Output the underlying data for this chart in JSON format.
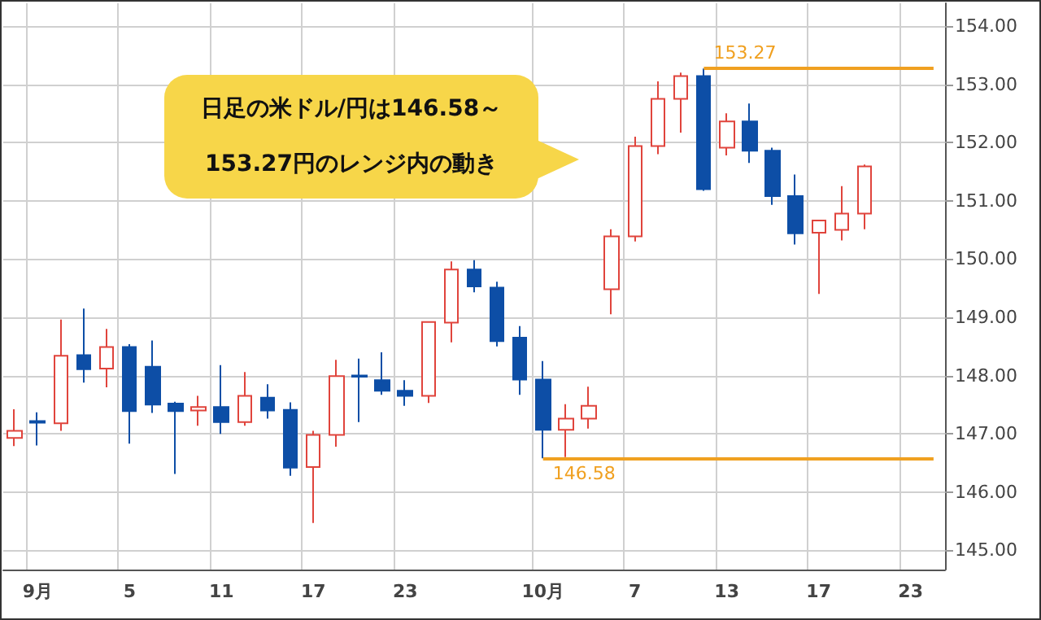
{
  "chart_data": {
    "type": "candlestick",
    "categories": [
      null,
      "9月",
      null,
      null,
      null,
      "5",
      null,
      null,
      null,
      "11",
      null,
      null,
      null,
      "17",
      null,
      null,
      null,
      "23",
      null,
      null,
      null,
      null,
      null,
      "10月",
      null,
      null,
      null,
      "7",
      null,
      null,
      null,
      "13",
      null,
      null,
      null,
      "17",
      null,
      null,
      null,
      "23",
      null
    ],
    "ohlc": [
      [
        146.93,
        147.42,
        146.79,
        147.05
      ],
      [
        147.22,
        147.37,
        146.8,
        147.19
      ],
      [
        147.18,
        148.96,
        147.05,
        148.34
      ],
      [
        148.35,
        149.15,
        147.88,
        148.11
      ],
      [
        148.12,
        148.8,
        147.8,
        148.49
      ],
      [
        148.49,
        148.54,
        146.83,
        147.39
      ],
      [
        148.15,
        148.6,
        147.36,
        147.5
      ],
      [
        147.52,
        147.55,
        146.31,
        147.39
      ],
      [
        147.4,
        147.65,
        147.14,
        147.46
      ],
      [
        147.46,
        148.18,
        147.0,
        147.2
      ],
      [
        147.2,
        148.06,
        147.14,
        147.65
      ],
      [
        147.62,
        147.85,
        147.26,
        147.4
      ],
      [
        147.41,
        147.54,
        146.28,
        146.42
      ],
      [
        146.43,
        147.05,
        145.47,
        146.98
      ],
      [
        146.98,
        148.27,
        146.78,
        147.99
      ],
      [
        148.0,
        148.29,
        147.2,
        147.98
      ],
      [
        147.92,
        148.4,
        147.67,
        147.74
      ],
      [
        147.74,
        147.92,
        147.48,
        147.65
      ],
      [
        147.65,
        148.92,
        147.53,
        148.92
      ],
      [
        148.91,
        149.96,
        148.57,
        149.82
      ],
      [
        149.82,
        149.98,
        149.43,
        149.53
      ],
      [
        149.51,
        149.61,
        148.5,
        148.59
      ],
      [
        148.65,
        148.85,
        147.67,
        147.93
      ],
      [
        147.93,
        148.25,
        146.58,
        147.07
      ],
      [
        147.07,
        147.51,
        146.6,
        147.26
      ],
      [
        147.26,
        147.81,
        147.09,
        147.48
      ],
      [
        149.48,
        150.51,
        149.05,
        150.39
      ],
      [
        150.39,
        152.1,
        150.3,
        151.94
      ],
      [
        151.94,
        153.05,
        151.8,
        152.75
      ],
      [
        152.75,
        153.2,
        152.17,
        153.14
      ],
      [
        153.14,
        153.27,
        151.17,
        151.2
      ],
      [
        151.91,
        152.5,
        151.78,
        152.36
      ],
      [
        152.36,
        152.67,
        151.65,
        151.86
      ],
      [
        151.86,
        151.91,
        150.93,
        151.08
      ],
      [
        151.08,
        151.45,
        150.25,
        150.44
      ],
      [
        150.45,
        150.66,
        149.4,
        150.66
      ],
      [
        150.5,
        151.25,
        150.32,
        150.78
      ],
      [
        150.78,
        151.62,
        150.51,
        151.59
      ],
      null,
      null,
      null
    ],
    "colors": [
      "#e0443c",
      "#0d4ea6",
      "#e0443c",
      "#0d4ea6",
      "#e0443c",
      "#0d4ea6",
      "#0d4ea6",
      "#0d4ea6",
      "#e0443c",
      "#0d4ea6",
      "#e0443c",
      "#0d4ea6",
      "#0d4ea6",
      "#e0443c",
      "#e0443c",
      "#0d4ea6",
      "#0d4ea6",
      "#0d4ea6",
      "#e0443c",
      "#e0443c",
      "#0d4ea6",
      "#0d4ea6",
      "#0d4ea6",
      "#0d4ea6",
      "#e0443c",
      "#e0443c",
      "#e0443c",
      "#e0443c",
      "#e0443c",
      "#e0443c",
      "#0d4ea6",
      "#e0443c",
      "#0d4ea6",
      "#0d4ea6",
      "#0d4ea6",
      "#e0443c",
      "#e0443c",
      "#e0443c",
      null,
      null,
      null
    ],
    "ylim": [
      144.67,
      154.39
    ],
    "yticks": [
      {
        "value": 145,
        "label": "145.00"
      },
      {
        "value": 146,
        "label": "146.00"
      },
      {
        "value": 147,
        "label": "147.00"
      },
      {
        "value": 148,
        "label": "148.00"
      },
      {
        "value": 149,
        "label": "149.00"
      },
      {
        "value": 150,
        "label": "150.00"
      },
      {
        "value": 151,
        "label": "151.00"
      },
      {
        "value": 152,
        "label": "152.00"
      },
      {
        "value": 153,
        "label": "153.00"
      },
      {
        "value": 154,
        "label": "154.00"
      }
    ],
    "grid": true,
    "ref_lines": [
      {
        "axis": "y",
        "value": 153.27,
        "label": "153.27",
        "color": "#f0a020"
      },
      {
        "axis": "y",
        "value": 146.58,
        "label": "146.58",
        "color": "#f0a020"
      }
    ],
    "annotations": [
      "日足の米ドル/円は146.58～\n153.27円のレンジ内の動き"
    ]
  }
}
